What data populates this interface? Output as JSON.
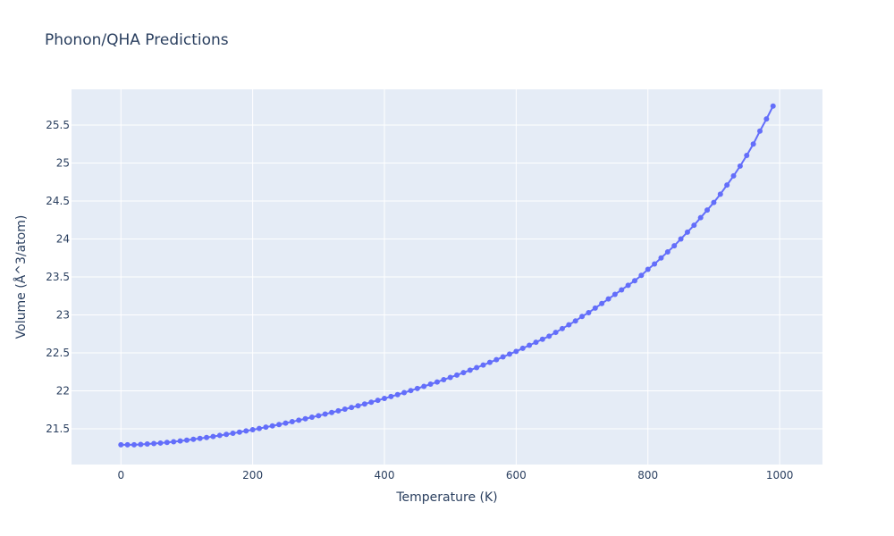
{
  "chart_data": {
    "type": "line",
    "title": "Phonon/QHA Predictions",
    "xlabel": "Temperature (K)",
    "ylabel": "Volume (Å^3/atom)",
    "xlim": [
      -75,
      1065
    ],
    "ylim": [
      21.03,
      25.97
    ],
    "xticks": [
      0,
      200,
      400,
      600,
      800,
      1000
    ],
    "xtick_labels": [
      "0",
      "200",
      "400",
      "600",
      "800",
      "1000"
    ],
    "yticks": [
      21.5,
      22,
      22.5,
      23,
      23.5,
      24,
      24.5,
      25,
      25.5
    ],
    "ytick_labels": [
      "21.5",
      "22",
      "22.5",
      "23",
      "23.5",
      "24",
      "24.5",
      "25",
      "25.5"
    ],
    "grid": true,
    "legend": "none",
    "series": [
      {
        "color": "#636efa",
        "mode": "lines+markers",
        "x": [
          0,
          10,
          20,
          30,
          40,
          50,
          60,
          70,
          80,
          90,
          100,
          110,
          120,
          130,
          140,
          150,
          160,
          170,
          180,
          190,
          200,
          210,
          220,
          230,
          240,
          250,
          260,
          270,
          280,
          290,
          300,
          310,
          320,
          330,
          340,
          350,
          360,
          370,
          380,
          390,
          400,
          410,
          420,
          430,
          440,
          450,
          460,
          470,
          480,
          490,
          500,
          510,
          520,
          530,
          540,
          550,
          560,
          570,
          580,
          590,
          600,
          610,
          620,
          630,
          640,
          650,
          660,
          670,
          680,
          690,
          700,
          710,
          720,
          730,
          740,
          750,
          760,
          770,
          780,
          790,
          800,
          810,
          820,
          830,
          840,
          850,
          860,
          870,
          880,
          890,
          900,
          910,
          920,
          930,
          940,
          950,
          960,
          970,
          980,
          990
        ],
        "y": [
          21.29,
          21.29,
          21.29,
          21.294,
          21.3,
          21.306,
          21.313,
          21.321,
          21.33,
          21.34,
          21.35,
          21.362,
          21.374,
          21.386,
          21.399,
          21.413,
          21.427,
          21.442,
          21.457,
          21.472,
          21.488,
          21.505,
          21.522,
          21.539,
          21.557,
          21.575,
          21.594,
          21.613,
          21.633,
          21.653,
          21.673,
          21.694,
          21.715,
          21.737,
          21.759,
          21.781,
          21.804,
          21.827,
          21.851,
          21.876,
          21.9,
          21.925,
          21.951,
          21.977,
          22.004,
          22.031,
          22.059,
          22.088,
          22.117,
          22.147,
          22.177,
          22.208,
          22.24,
          22.273,
          22.306,
          22.34,
          22.375,
          22.41,
          22.447,
          22.484,
          22.52,
          22.56,
          22.6,
          22.64,
          22.68,
          22.72,
          22.77,
          22.82,
          22.87,
          22.92,
          22.98,
          23.03,
          23.09,
          23.15,
          23.21,
          23.27,
          23.33,
          23.39,
          23.45,
          23.52,
          23.6,
          23.67,
          23.75,
          23.83,
          23.91,
          24.0,
          24.09,
          24.18,
          24.28,
          24.38,
          24.48,
          24.59,
          24.71,
          24.83,
          24.96,
          25.1,
          25.25,
          25.42,
          25.58,
          25.75
        ]
      }
    ]
  }
}
